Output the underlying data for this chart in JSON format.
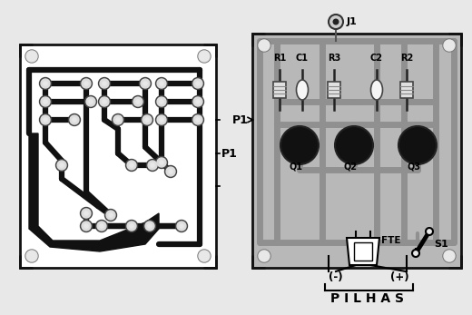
{
  "bg_color": "#e8e8e8",
  "pcb_white": "#ffffff",
  "pcb_dark": "#111111",
  "pcb_gray": "#b8b8b8",
  "trace_gray": "#999999",
  "title_text": "P I L H A S",
  "label_fte": "FTE",
  "label_s1": "S1",
  "label_p1": "P1",
  "label_q1": "Q1",
  "label_q2": "Q2",
  "label_q3": "Q3",
  "label_r1": "R1",
  "label_c1": "C1",
  "label_r3": "R3",
  "label_c2": "C2",
  "label_r2": "R2",
  "label_j1": "J1",
  "label_minus": "(-)",
  "label_plus": "(+)",
  "fig_width": 5.2,
  "fig_height": 3.47,
  "dpi": 100
}
